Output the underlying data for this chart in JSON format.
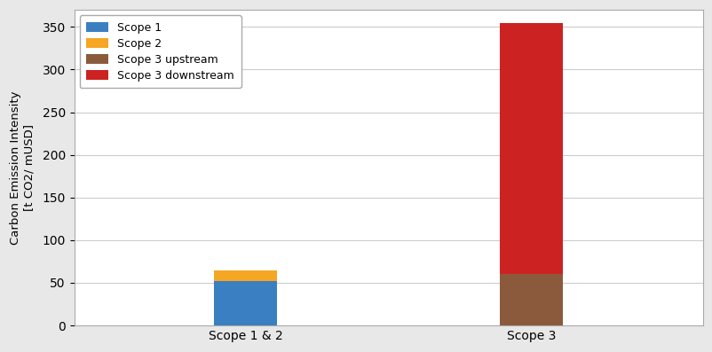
{
  "categories": [
    "Scope 1 & 2",
    "Scope 3"
  ],
  "scope1": [
    52,
    0
  ],
  "scope2": [
    13,
    0
  ],
  "scope3_upstream": [
    0,
    60
  ],
  "scope3_downstream": [
    0,
    295
  ],
  "colors": {
    "scope1": "#3a7fc1",
    "scope2": "#f5a623",
    "scope3_upstream": "#8B5A3C",
    "scope3_downstream": "#cc2222"
  },
  "legend_labels": [
    "Scope 1",
    "Scope 2",
    "Scope 3 upstream",
    "Scope 3 downstream"
  ],
  "ylabel": "Carbon Emission Intensity\n[t CO2/ mUSD]",
  "ylim": [
    0,
    370
  ],
  "yticks": [
    0,
    50,
    100,
    150,
    200,
    250,
    300,
    350
  ],
  "bar_width": 0.22,
  "background_color": "#e8e8e8",
  "axes_facecolor": "#ffffff",
  "grid_color": "#cccccc",
  "figsize": [
    8.03,
    3.97
  ],
  "dpi": 100
}
